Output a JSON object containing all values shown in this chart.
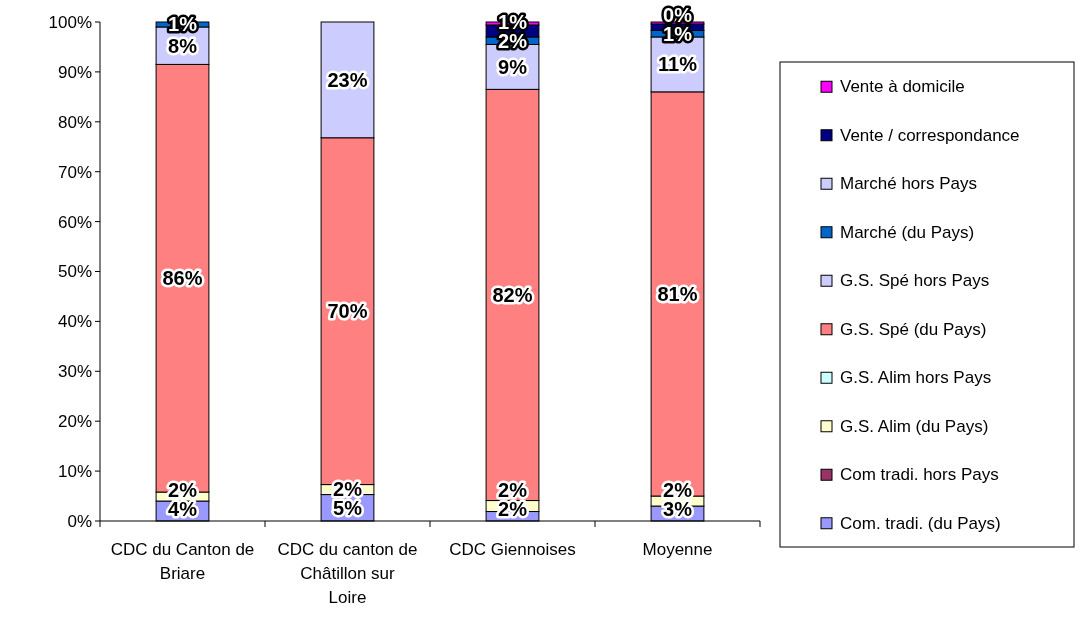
{
  "chart_data": {
    "type": "bar",
    "stacked": true,
    "categories": [
      "CDC du Canton de Briare",
      "CDC du canton de Châtillon sur Loire",
      "CDC Giennoises",
      "Moyenne"
    ],
    "series": [
      {
        "name": "Com. tradi. (du Pays)",
        "color": "#9999ff",
        "values": [
          4,
          5.3,
          1.9,
          3
        ],
        "value_labels": [
          "4%",
          "5%",
          "2%",
          "3%"
        ]
      },
      {
        "name": "Com tradi. hors Pays",
        "color": "#993366",
        "values": [
          0,
          0,
          0,
          0
        ],
        "value_labels": [
          null,
          null,
          null,
          null
        ]
      },
      {
        "name": "G.S. Alim (du Pays)",
        "color": "#ffffcc",
        "values": [
          1.8,
          2,
          2.2,
          2
        ],
        "value_labels": [
          "2%",
          "2%",
          "2%",
          "2%"
        ]
      },
      {
        "name": "G.S. Alim hors Pays",
        "color": "#ccffff",
        "values": [
          0,
          0,
          0,
          0
        ],
        "value_labels": [
          null,
          null,
          null,
          null
        ]
      },
      {
        "name": "G.S. Spé (du Pays)",
        "color": "#ff8080",
        "values": [
          85.7,
          69.5,
          82.4,
          81
        ],
        "value_labels": [
          "86%",
          "70%",
          "82%",
          "81%"
        ]
      },
      {
        "name": "G.S. Spé hors Pays",
        "color": "#ccccff",
        "values": [
          7.5,
          23.2,
          9,
          11
        ],
        "value_labels": [
          "8%",
          "23%",
          "9%",
          "11%"
        ]
      },
      {
        "name": "Marché (du Pays)",
        "color": "#0066cc",
        "values": [
          1,
          0,
          1.5,
          1.3
        ],
        "value_labels": [
          "1%",
          null,
          "2%",
          "1%"
        ]
      },
      {
        "name": "Marché hors Pays",
        "color": "#ccccff",
        "values": [
          0,
          0,
          0,
          0
        ],
        "value_labels": [
          null,
          null,
          null,
          null
        ]
      },
      {
        "name": "Vente / correspondance",
        "color": "#000080",
        "values": [
          0,
          0,
          2.4,
          1.3
        ],
        "value_labels": [
          null,
          null,
          null,
          null
        ]
      },
      {
        "name": "Vente à domicile",
        "color": "#ff00ff",
        "values": [
          0,
          0,
          0.6,
          0.4
        ],
        "value_labels": [
          null,
          null,
          "1%",
          "0%"
        ]
      }
    ],
    "ylim": [
      0,
      100
    ],
    "yticks": [
      {
        "value": 0,
        "label": "0%"
      },
      {
        "value": 10,
        "label": "10%"
      },
      {
        "value": 20,
        "label": "20%"
      },
      {
        "value": 30,
        "label": "30%"
      },
      {
        "value": 40,
        "label": "40%"
      },
      {
        "value": 50,
        "label": "50%"
      },
      {
        "value": 60,
        "label": "60%"
      },
      {
        "value": 70,
        "label": "70%"
      },
      {
        "value": 80,
        "label": "80%"
      },
      {
        "value": 90,
        "label": "90%"
      },
      {
        "value": 100,
        "label": "100%"
      }
    ],
    "legend": "right"
  }
}
